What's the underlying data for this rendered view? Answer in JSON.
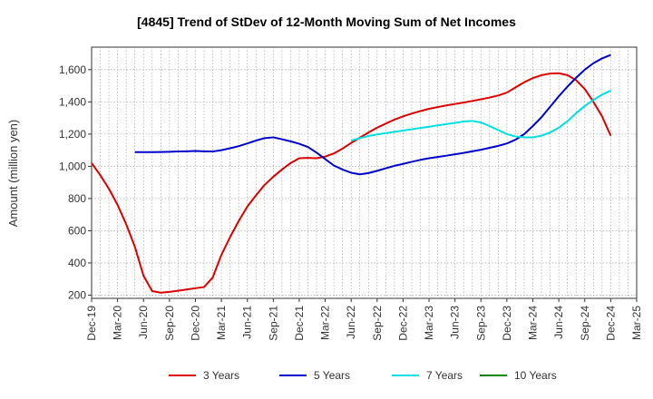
{
  "title": "[4845]  Trend of StDev of 12-Month Moving Sum of Net Incomes",
  "chart_data": {
    "type": "line",
    "title": "[4845]  Trend of StDev of 12-Month Moving Sum of Net Incomes",
    "xlabel": "",
    "ylabel": "Amount (million yen)",
    "ylim": [
      180,
      1740
    ],
    "yticks": [
      200,
      400,
      600,
      800,
      1000,
      1200,
      1400,
      1600
    ],
    "ytick_labels": [
      "200",
      "400",
      "600",
      "800",
      "1,000",
      "1,200",
      "1,400",
      "1,600"
    ],
    "xticks": [
      "Dec-19",
      "Mar-20",
      "Jun-20",
      "Sep-20",
      "Dec-20",
      "Mar-21",
      "Jun-21",
      "Sep-21",
      "Dec-21",
      "Mar-22",
      "Jun-22",
      "Sep-22",
      "Dec-22",
      "Mar-23",
      "Jun-23",
      "Sep-23",
      "Dec-23",
      "Mar-24",
      "Jun-24",
      "Sep-24",
      "Dec-24",
      "Mar-25"
    ],
    "grid": true,
    "legend_position": "bottom",
    "series": [
      {
        "name": "3 Years",
        "color": "#dd0000",
        "x": [
          "Dec-19",
          "Jan-20",
          "Feb-20",
          "Mar-20",
          "Apr-20",
          "May-20",
          "Jun-20",
          "Jul-20",
          "Aug-20",
          "Sep-20",
          "Oct-20",
          "Nov-20",
          "Dec-20",
          "Jan-21",
          "Feb-21",
          "Mar-21",
          "Apr-21",
          "May-21",
          "Jun-21",
          "Jul-21",
          "Aug-21",
          "Sep-21",
          "Oct-21",
          "Nov-21",
          "Dec-21",
          "Jan-22",
          "Feb-22",
          "Mar-22",
          "Apr-22",
          "May-22",
          "Jun-22",
          "Jul-22",
          "Aug-22",
          "Sep-22",
          "Oct-22",
          "Nov-22",
          "Dec-22",
          "Jan-23",
          "Feb-23",
          "Mar-23",
          "Apr-23",
          "May-23",
          "Jun-23",
          "Jul-23",
          "Aug-23",
          "Sep-23",
          "Oct-23",
          "Nov-23",
          "Dec-23",
          "Jan-24",
          "Feb-24",
          "Mar-24",
          "Apr-24",
          "May-24",
          "Jun-24",
          "Jul-24",
          "Aug-24",
          "Sep-24",
          "Oct-24",
          "Nov-24",
          "Dec-24"
        ],
        "values": [
          1020,
          945,
          860,
          760,
          640,
          500,
          320,
          225,
          215,
          220,
          227,
          235,
          243,
          250,
          310,
          450,
          560,
          660,
          750,
          820,
          885,
          935,
          980,
          1020,
          1050,
          1052,
          1050,
          1060,
          1080,
          1110,
          1145,
          1178,
          1210,
          1240,
          1265,
          1290,
          1310,
          1328,
          1343,
          1357,
          1368,
          1378,
          1387,
          1396,
          1406,
          1416,
          1427,
          1440,
          1458,
          1490,
          1522,
          1548,
          1566,
          1576,
          1578,
          1566,
          1535,
          1480,
          1400,
          1310,
          1190
        ]
      },
      {
        "name": "5 Years",
        "color": "#0000cc",
        "x": [
          "May-20",
          "Jun-20",
          "Jul-20",
          "Aug-20",
          "Sep-20",
          "Oct-20",
          "Nov-20",
          "Dec-20",
          "Jan-21",
          "Feb-21",
          "Mar-21",
          "Apr-21",
          "May-21",
          "Jun-21",
          "Jul-21",
          "Aug-21",
          "Sep-21",
          "Oct-21",
          "Nov-21",
          "Dec-21",
          "Jan-22",
          "Feb-22",
          "Mar-22",
          "Apr-22",
          "May-22",
          "Jun-22",
          "Jul-22",
          "Aug-22",
          "Sep-22",
          "Oct-22",
          "Nov-22",
          "Dec-22",
          "Jan-23",
          "Feb-23",
          "Mar-23",
          "Apr-23",
          "May-23",
          "Jun-23",
          "Jul-23",
          "Aug-23",
          "Sep-23",
          "Oct-23",
          "Nov-23",
          "Dec-23",
          "Jan-24",
          "Feb-24",
          "Mar-24",
          "Apr-24",
          "May-24",
          "Jun-24",
          "Jul-24",
          "Aug-24",
          "Sep-24",
          "Oct-24",
          "Nov-24",
          "Dec-24"
        ],
        "values": [
          1088,
          1088,
          1088,
          1089,
          1090,
          1092,
          1093,
          1095,
          1093,
          1092,
          1100,
          1112,
          1125,
          1142,
          1160,
          1175,
          1180,
          1168,
          1155,
          1140,
          1120,
          1085,
          1045,
          1005,
          980,
          960,
          950,
          958,
          972,
          988,
          1003,
          1015,
          1028,
          1040,
          1050,
          1058,
          1066,
          1075,
          1083,
          1093,
          1103,
          1115,
          1127,
          1142,
          1165,
          1200,
          1250,
          1305,
          1370,
          1435,
          1495,
          1550,
          1600,
          1640,
          1670,
          1692
        ]
      },
      {
        "name": "7 Years",
        "color": "#00e0e0",
        "x": [
          "Jun-22",
          "Jul-22",
          "Aug-22",
          "Sep-22",
          "Oct-22",
          "Nov-22",
          "Dec-22",
          "Jan-23",
          "Feb-23",
          "Mar-23",
          "Apr-23",
          "May-23",
          "Jun-23",
          "Jul-23",
          "Aug-23",
          "Sep-23",
          "Oct-23",
          "Nov-23",
          "Dec-23",
          "Jan-24",
          "Feb-24",
          "Mar-24",
          "Apr-24",
          "May-24",
          "Jun-24",
          "Jul-24",
          "Aug-24",
          "Sep-24",
          "Oct-24",
          "Nov-24",
          "Dec-24"
        ],
        "values": [
          1160,
          1175,
          1188,
          1198,
          1206,
          1214,
          1222,
          1230,
          1238,
          1246,
          1254,
          1262,
          1270,
          1278,
          1282,
          1272,
          1250,
          1225,
          1200,
          1185,
          1180,
          1180,
          1190,
          1210,
          1240,
          1280,
          1330,
          1375,
          1412,
          1445,
          1470
        ]
      },
      {
        "name": "10 Years",
        "color": "#008800",
        "x": [],
        "values": []
      }
    ]
  }
}
